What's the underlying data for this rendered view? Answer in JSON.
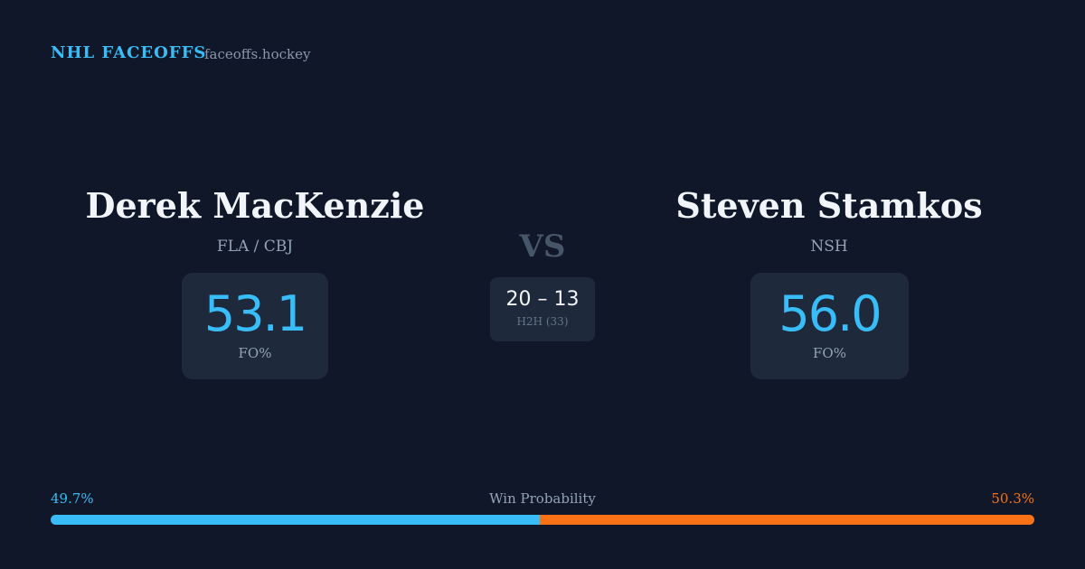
{
  "header": {
    "brand": "NHL FACEOFFS",
    "site": "faceoffs.hockey"
  },
  "players": [
    {
      "name": "Derek MacKenzie",
      "team": "FLA / CBJ",
      "fo": "53.1",
      "fo_label": "FO%"
    },
    {
      "name": "Steven Stamkos",
      "team": "NSH",
      "fo": "56.0",
      "fo_label": "FO%"
    }
  ],
  "versus": {
    "label": "VS",
    "score": "20 – 13",
    "h2h": "H2H (33)"
  },
  "win_probability": {
    "label": "Win Probability",
    "left": {
      "value": 49.7,
      "label": "49.7%",
      "color": "#38bdf8"
    },
    "right": {
      "value": 50.3,
      "label": "50.3%",
      "color": "#f97316"
    }
  }
}
